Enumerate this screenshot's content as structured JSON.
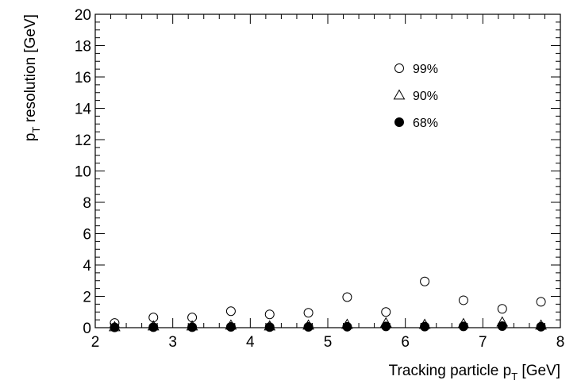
{
  "chart_data": {
    "type": "scatter",
    "x_label": {
      "main": "Tracking particle p",
      "sub": "T",
      "unit": " [GeV]"
    },
    "y_label": {
      "main": "p",
      "sub": "T",
      "rest": " resolution [GeV]"
    },
    "xlim": [
      2,
      8
    ],
    "ylim": [
      0,
      20
    ],
    "x_ticks": [
      2,
      3,
      4,
      5,
      6,
      7,
      8
    ],
    "y_ticks": [
      0,
      2,
      4,
      6,
      8,
      10,
      12,
      14,
      16,
      18,
      20
    ],
    "x_tick_labels": [
      "2",
      "3",
      "4",
      "5",
      "6",
      "7",
      "8"
    ],
    "y_tick_labels": [
      "0",
      "2",
      "4",
      "6",
      "8",
      "10",
      "12",
      "14",
      "16",
      "18",
      "20"
    ],
    "grid": false,
    "legend_position": "top-right",
    "x": [
      2.25,
      2.75,
      3.25,
      3.75,
      4.25,
      4.75,
      5.25,
      5.75,
      6.25,
      6.75,
      7.25,
      7.75
    ],
    "series": [
      {
        "name": "99%",
        "marker": "open-circle",
        "values": [
          0.3,
          0.65,
          0.65,
          1.05,
          0.85,
          0.95,
          1.95,
          1.0,
          2.95,
          1.75,
          1.2,
          1.65
        ]
      },
      {
        "name": "90%",
        "marker": "open-triangle",
        "values": [
          0.05,
          0.1,
          0.1,
          0.15,
          0.1,
          0.15,
          0.2,
          0.3,
          0.2,
          0.25,
          0.35,
          0.15
        ]
      },
      {
        "name": "68%",
        "marker": "filled-circle",
        "values": [
          0.02,
          0.03,
          0.03,
          0.05,
          0.04,
          0.05,
          0.06,
          0.08,
          0.07,
          0.08,
          0.1,
          0.06
        ]
      }
    ]
  }
}
